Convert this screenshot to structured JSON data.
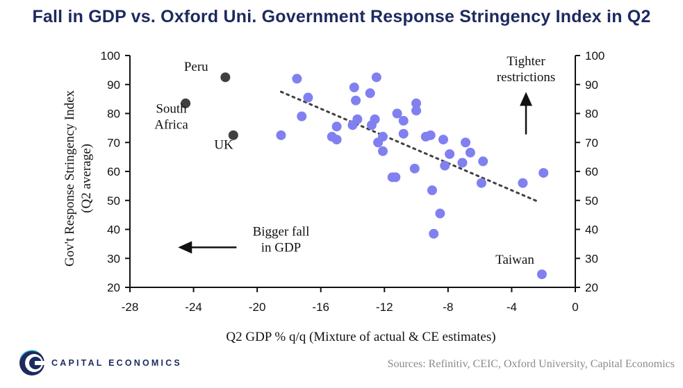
{
  "title": "Fall in GDP vs. Oxford Uni. Government Response Stringency Index in Q2",
  "source": "Sources: Refinitiv, CEIC, Oxford University, Capital Economics",
  "logo_text": "CAPITAL ECONOMICS",
  "colors": {
    "title": "#1c2a5e",
    "point": "#8080f0",
    "highlight_point": "#404040",
    "trend": "#404040",
    "source": "#8a8a8a"
  },
  "chart_data": {
    "type": "scatter",
    "title": "Fall in GDP vs. Oxford Uni. Government Response Stringency Index in Q2",
    "xlabel": "Q2 GDP % q/q (Mixture of actual & CE estimates)",
    "ylabel_lines": [
      "Gov't Response Stringency Index",
      "(Q2 average)"
    ],
    "xlim": [
      -28,
      0
    ],
    "ylim": [
      20,
      100
    ],
    "x_ticks": [
      -28,
      -24,
      -20,
      -16,
      -12,
      -8,
      -4,
      0
    ],
    "y_ticks": [
      20,
      30,
      40,
      50,
      60,
      70,
      80,
      90,
      100
    ],
    "y_axes": [
      "left",
      "right"
    ],
    "grid": false,
    "series": [
      {
        "type": "scatter",
        "color": "#8080f0",
        "points": [
          {
            "x": -18.5,
            "y": 72.5
          },
          {
            "x": -17.5,
            "y": 92
          },
          {
            "x": -17.2,
            "y": 79
          },
          {
            "x": -16.8,
            "y": 85.5
          },
          {
            "x": -15.3,
            "y": 72
          },
          {
            "x": -15,
            "y": 75.5
          },
          {
            "x": -15,
            "y": 71
          },
          {
            "x": -14,
            "y": 76
          },
          {
            "x": -13.9,
            "y": 89
          },
          {
            "x": -13.8,
            "y": 84.5
          },
          {
            "x": -13.7,
            "y": 78
          },
          {
            "x": -12.9,
            "y": 87
          },
          {
            "x": -12.8,
            "y": 76
          },
          {
            "x": -12.6,
            "y": 78
          },
          {
            "x": -12.5,
            "y": 92.5
          },
          {
            "x": -12.4,
            "y": 70
          },
          {
            "x": -12.1,
            "y": 72
          },
          {
            "x": -12.1,
            "y": 67
          },
          {
            "x": -11.5,
            "y": 58
          },
          {
            "x": -11.3,
            "y": 58
          },
          {
            "x": -11.2,
            "y": 80
          },
          {
            "x": -10.8,
            "y": 77.5
          },
          {
            "x": -10.8,
            "y": 73
          },
          {
            "x": -10.1,
            "y": 61
          },
          {
            "x": -10,
            "y": 83.5
          },
          {
            "x": -10,
            "y": 81
          },
          {
            "x": -9.4,
            "y": 72
          },
          {
            "x": -9.1,
            "y": 72.5
          },
          {
            "x": -9,
            "y": 53.5
          },
          {
            "x": -8.9,
            "y": 38.5
          },
          {
            "x": -8.5,
            "y": 45.5
          },
          {
            "x": -8.3,
            "y": 71
          },
          {
            "x": -8.2,
            "y": 62
          },
          {
            "x": -7.9,
            "y": 66
          },
          {
            "x": -7.1,
            "y": 63
          },
          {
            "x": -6.9,
            "y": 70
          },
          {
            "x": -6.6,
            "y": 66.5
          },
          {
            "x": -5.9,
            "y": 56
          },
          {
            "x": -5.8,
            "y": 63.5
          },
          {
            "x": -3.3,
            "y": 56
          },
          {
            "x": -2.1,
            "y": 24.5
          },
          {
            "x": -2,
            "y": 59.5
          }
        ]
      },
      {
        "type": "scatter",
        "color": "#404040",
        "points": [
          {
            "x": -24.5,
            "y": 83.5,
            "label": "South\nAfrica"
          },
          {
            "x": -22,
            "y": 92.5,
            "label": "Peru"
          },
          {
            "x": -21.5,
            "y": 72.5,
            "label": "UK"
          }
        ]
      },
      {
        "type": "line",
        "style": "dotted",
        "color": "#404040",
        "points": [
          {
            "x": -18.5,
            "y": 87.5
          },
          {
            "x": -2.3,
            "y": 49.5
          }
        ]
      }
    ],
    "annotations": [
      {
        "text": "Tighter\nrestrictions",
        "arrow": "up"
      },
      {
        "text": "Bigger fall\nin GDP",
        "arrow": "left"
      },
      {
        "text": "Taiwan"
      }
    ]
  }
}
